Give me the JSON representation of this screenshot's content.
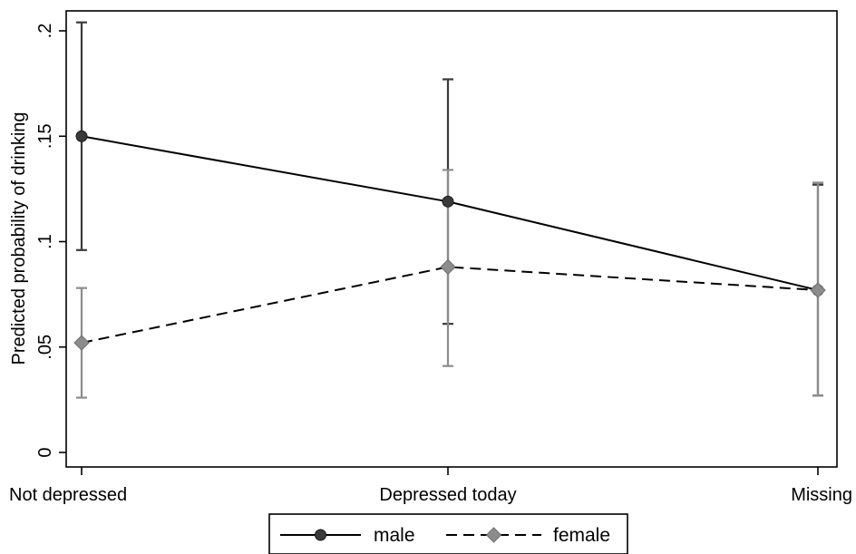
{
  "chart_data": {
    "type": "line",
    "title": "",
    "xlabel": "",
    "ylabel": "Predicted probability of drinking",
    "categories": [
      "Not depressed",
      "Depressed today",
      "Missing"
    ],
    "ylim": [
      0,
      0.2
    ],
    "yticks": [
      0,
      0.05,
      0.1,
      0.15,
      0.2
    ],
    "ytick_labels": [
      "0",
      ".05",
      ".1",
      ".15",
      ".2"
    ],
    "grid": false,
    "legend_position": "bottom",
    "series": [
      {
        "name": "male",
        "marker": "circle",
        "line_style": "solid",
        "color": "#3a3a3a",
        "values": [
          0.15,
          0.119,
          0.077
        ],
        "ci_low": [
          0.096,
          0.061,
          0.027
        ],
        "ci_high": [
          0.204,
          0.177,
          0.127
        ]
      },
      {
        "name": "female",
        "marker": "diamond",
        "line_style": "dashed",
        "color": "#8c8c8c",
        "values": [
          0.052,
          0.088,
          0.077
        ],
        "ci_low": [
          0.026,
          0.041,
          0.027
        ],
        "ci_high": [
          0.078,
          0.134,
          0.128
        ]
      }
    ]
  }
}
